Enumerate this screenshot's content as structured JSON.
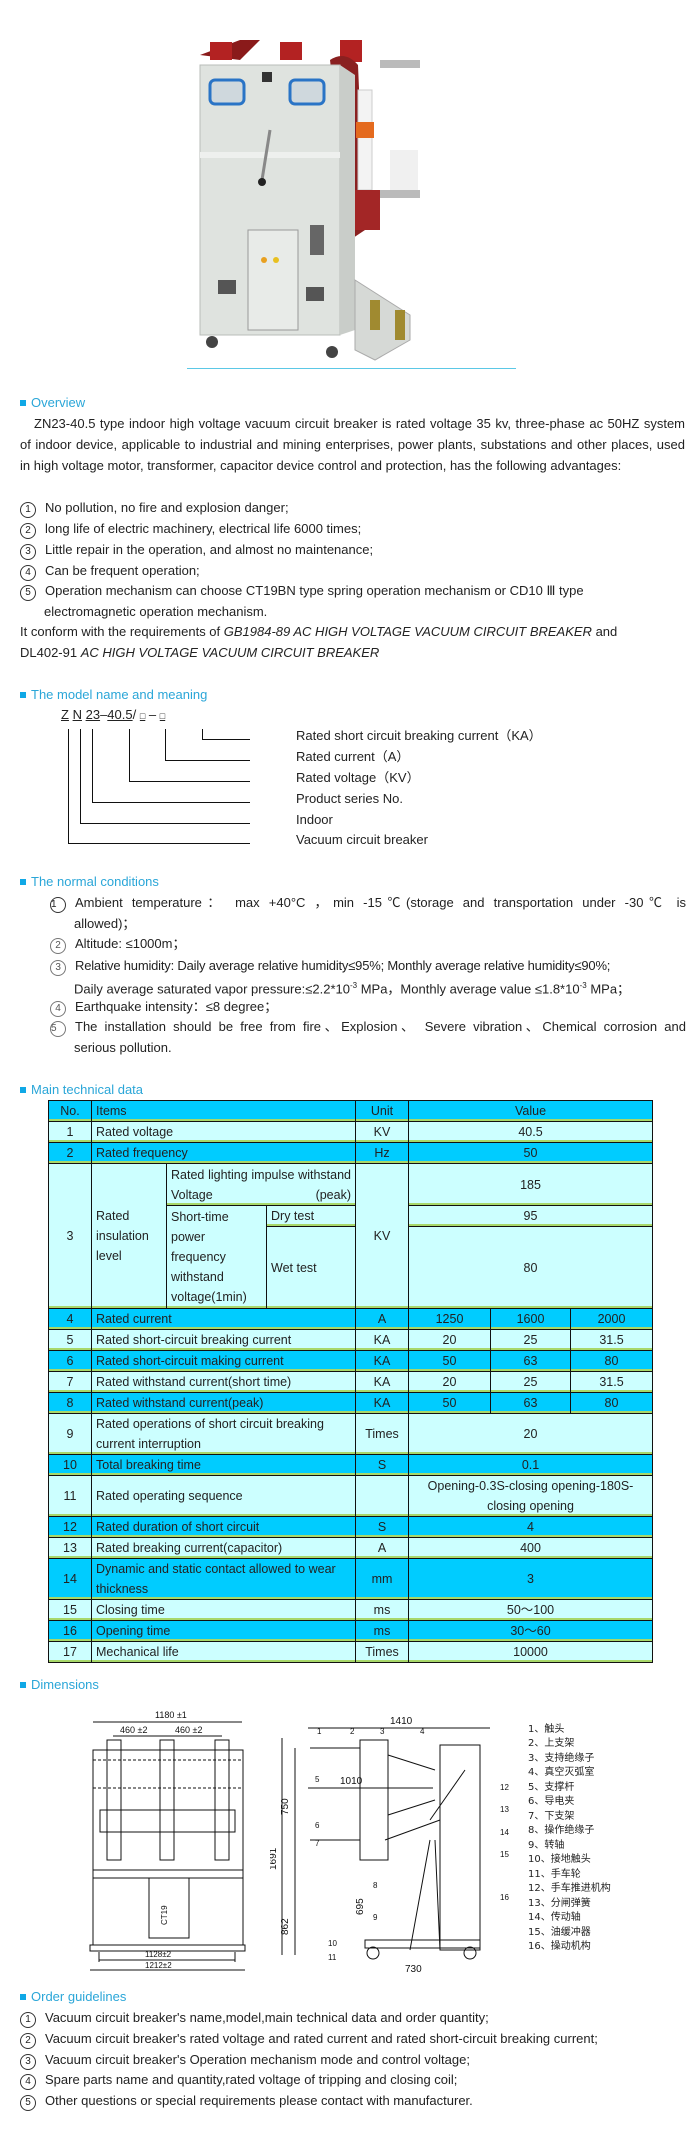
{
  "colors": {
    "accent": "#2aa6d8",
    "table_header": "#00ccff",
    "table_row_dark": "#00ccff",
    "table_row_light": "#ccffff"
  },
  "product_image": {
    "icon": "vacuum-circuit-breaker-photo"
  },
  "overview": {
    "heading": "Overview",
    "paragraph": "ZN23-40.5 type indoor high voltage vacuum circuit breaker is rated voltage 35 kv, three-phase ac 50HZ system of indoor device, applicable to industrial and mining enterprises, power plants, substations and other places, used in high voltage motor, transformer, capacitor device control and protection, has the following advantages:",
    "items": [
      {
        "num": "1",
        "text": "No pollution, no fire and explosion danger;"
      },
      {
        "num": "2",
        "text": "long life of electric machinery, electrical life 6000 times;"
      },
      {
        "num": "3",
        "text": "Little repair in the operation, and almost no maintenance;"
      },
      {
        "num": "4",
        "text": "Can be frequent operation;"
      },
      {
        "num": "5",
        "text": "Operation mechanism can choose CT19BN type spring operation mechanism or CD10 Ⅲ type",
        "text2": "electromagnetic operation mechanism."
      }
    ],
    "conform": {
      "a": "It conform with the requirements of ",
      "b": "GB1984-89 AC HIGH VOLTAGE VACUUM CIRCUIT BREAKER",
      "c": " and",
      "d": "DL402-91 ",
      "e": "AC HIGH VOLTAGE VACUUM CIRCUIT BREAKER"
    }
  },
  "model": {
    "heading": "The model name and meaning",
    "code": {
      "z": "Z",
      "n": "N",
      "series": "23",
      "sep": "–",
      "voltage": "40.5",
      "slash": "/",
      "box1": "□",
      "dash": "–",
      "box2": "□"
    },
    "labels": [
      "Rated short circuit breaking current（KA）",
      "Rated current（A）",
      "Rated voltage（KV）",
      "Product series No.",
      "Indoor",
      "Vacuum circuit breaker"
    ]
  },
  "conditions": {
    "heading": "The normal conditions",
    "items": [
      {
        "num": "1",
        "l1": "Ambient temperature：  max +40°C ，min -15℃(storage and transportation under -30℃  is",
        "l2": "allowed)；"
      },
      {
        "num": "2",
        "l1": "Altitude: ≤1000m；"
      },
      {
        "num": "3",
        "l1": "Relative humidity: Daily average relative humidity≤95%; Monthly average relative humidity≤90%;",
        "l2a": "Daily average saturated vapor pressure:≤2.2*10",
        "l2sup": "-3",
        "l2b": " MPa，Monthly average value ≤1.8*10",
        "l2sup2": "-3",
        "l2c": " MPa；"
      },
      {
        "num": "4",
        "l1": "Earthquake intensity：≤8 degree；"
      },
      {
        "num": "5",
        "l1": "The installation should be free from fire、Explosion、  Severe vibration、Chemical corrosion and",
        "l2": "serious pollution."
      }
    ]
  },
  "tech": {
    "heading": "Main technical data",
    "header": {
      "no": "No.",
      "items": "Items",
      "unit": "Unit",
      "value": "Value"
    },
    "row3": {
      "no": "3",
      "item": "Rated insulation level",
      "sub1": "Rated lighting impulse withstand Voltage (peak)",
      "sub2": "Short-time power frequency withstand voltage(1min)",
      "dry": "Dry test",
      "wet": "Wet test",
      "unit": "KV",
      "v1": "185",
      "v2": "95",
      "v3": "80"
    },
    "rows": [
      {
        "no": "1",
        "item": "Rated voltage",
        "unit": "KV",
        "value": "40.5"
      },
      {
        "no": "2",
        "item": "Rated frequency",
        "unit": "Hz",
        "value": "50"
      },
      {
        "no": "4",
        "item": "Rated current",
        "unit": "A",
        "values": [
          "1250",
          "1600",
          "2000"
        ]
      },
      {
        "no": "5",
        "item": "Rated short-circuit breaking current",
        "unit": "KA",
        "values": [
          "20",
          "25",
          "31.5"
        ]
      },
      {
        "no": "6",
        "item": "Rated short-circuit making current",
        "unit": "KA",
        "values": [
          "50",
          "63",
          "80"
        ]
      },
      {
        "no": "7",
        "item": "Rated withstand current(short time)",
        "unit": "KA",
        "values": [
          "20",
          "25",
          "31.5"
        ]
      },
      {
        "no": "8",
        "item": "Rated withstand current(peak)",
        "unit": "KA",
        "values": [
          "50",
          "63",
          "80"
        ]
      },
      {
        "no": "9",
        "item": "Rated operations of short circuit breaking current interruption",
        "unit": "Times",
        "value": "20"
      },
      {
        "no": "10",
        "item": "Total breaking time",
        "unit": "S",
        "value": "0.1"
      },
      {
        "no": "11",
        "item": "Rated operating sequence",
        "unit": "",
        "value": "Opening-0.3S-closing opening-180S-closing opening"
      },
      {
        "no": "12",
        "item": "Rated duration of short circuit",
        "unit": "S",
        "value": "4"
      },
      {
        "no": "13",
        "item": "Rated breaking current(capacitor)",
        "unit": "A",
        "value": "400"
      },
      {
        "no": "14",
        "item": "Dynamic and static contact allowed to wear thickness",
        "unit": "mm",
        "value": "3"
      },
      {
        "no": "15",
        "item": "Closing time",
        "unit": "ms",
        "value": "50～100"
      },
      {
        "no": "16",
        "item": "Opening time",
        "unit": "ms",
        "value": "30～60"
      },
      {
        "no": "17",
        "item": "Mechanical life",
        "unit": "Times",
        "value": "10000"
      }
    ]
  },
  "dimensions": {
    "heading": "Dimensions",
    "front": {
      "width": "1180 ±1",
      "pitch1": "460 ±2",
      "pitch2": "460 ±2",
      "track": "1128±2",
      "base": "1212±2",
      "mech": "CT19"
    },
    "side": {
      "d1410": "1410",
      "d1010": "1010",
      "d750": "750",
      "d1691": "1691",
      "d862": "862",
      "d695": "695",
      "d730": "730"
    },
    "callouts": [
      "1",
      "2",
      "3",
      "4",
      "5",
      "6",
      "7",
      "8",
      "9",
      "10",
      "11",
      "12",
      "13",
      "14",
      "15",
      "16"
    ],
    "legend": [
      "1、触头",
      "2、上支架",
      "3、支持绝缘子",
      "4、真空灭弧室",
      "5、支撑杆",
      "6、导电夹",
      "7、下支架",
      "8、操作绝缘子",
      "9、转轴",
      "10、接地触头",
      "11、手车轮",
      "12、手车推进机构",
      "13、分闸弹簧",
      "14、传动轴",
      "15、油缓冲器",
      "16、操动机构"
    ]
  },
  "order": {
    "heading": "Order guidelines",
    "items": [
      {
        "num": "1",
        "text": "Vacuum circuit breaker's name,model,main technical data and order quantity;"
      },
      {
        "num": "2",
        "text": "Vacuum circuit breaker's rated voltage and rated current and rated short-circuit breaking current;"
      },
      {
        "num": "3",
        "text": "Vacuum circuit breaker's Operation mechanism mode and control voltage;"
      },
      {
        "num": "4",
        "text": "Spare parts name and quantity,rated voltage of tripping and closing coil;"
      },
      {
        "num": "5",
        "text": "Other questions or special requirements please contact with manufacturer."
      }
    ]
  }
}
